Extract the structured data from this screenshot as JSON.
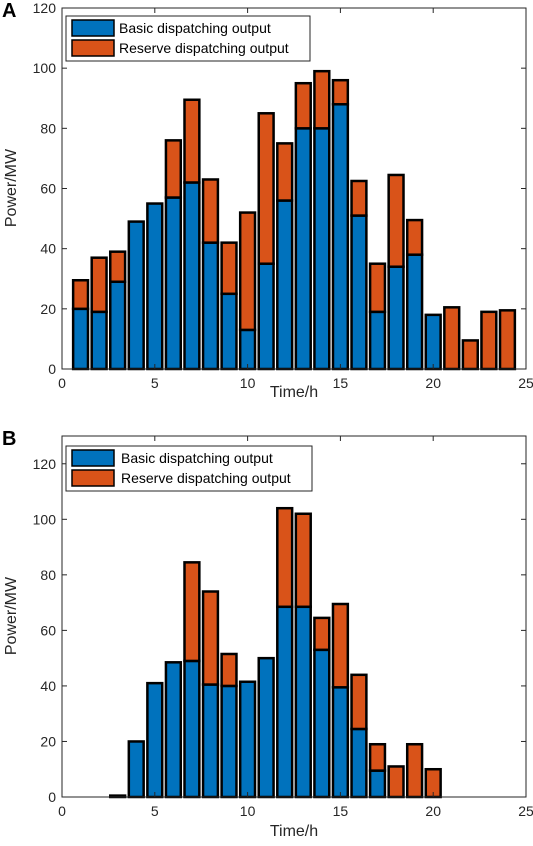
{
  "colors": {
    "basic": "#0072BD",
    "reserve": "#D95319",
    "edge": "#000000"
  },
  "chart_data": [
    {
      "panel": "A",
      "type": "bar",
      "stacked": true,
      "xlabel": "Time/h",
      "ylabel": "Power/MW",
      "xlim": [
        0,
        25
      ],
      "ylim": [
        0,
        120
      ],
      "xticks": [
        0,
        5,
        10,
        15,
        20,
        25
      ],
      "yticks": [
        0,
        20,
        40,
        60,
        80,
        100,
        120
      ],
      "legend_position": "top-left",
      "categories": [
        1,
        2,
        3,
        4,
        5,
        6,
        7,
        8,
        9,
        10,
        11,
        12,
        13,
        14,
        15,
        16,
        17,
        18,
        19,
        20,
        21,
        22,
        23,
        24
      ],
      "series": [
        {
          "name": "Basic dispatching output",
          "values": [
            20,
            19,
            29,
            49,
            55,
            57,
            62,
            42,
            25,
            13,
            35,
            56,
            80,
            80,
            88,
            51,
            19,
            34,
            38,
            18,
            0,
            0,
            0,
            0
          ]
        },
        {
          "name": "Reserve dispatching output",
          "values": [
            9.5,
            18,
            10,
            0,
            0,
            19,
            27.5,
            21,
            17,
            39,
            50,
            19,
            15,
            19,
            8,
            11.5,
            16,
            30.5,
            11.5,
            0,
            20.5,
            9.5,
            19,
            19.5
          ]
        }
      ]
    },
    {
      "panel": "B",
      "type": "bar",
      "stacked": true,
      "xlabel": "Time/h",
      "ylabel": "Power/MW",
      "xlim": [
        0,
        25
      ],
      "ylim": [
        0,
        130
      ],
      "xticks": [
        0,
        5,
        10,
        15,
        20,
        25
      ],
      "yticks": [
        0,
        20,
        40,
        60,
        80,
        100,
        120
      ],
      "legend_position": "top-left",
      "categories": [
        1,
        2,
        3,
        4,
        5,
        6,
        7,
        8,
        9,
        10,
        11,
        12,
        13,
        14,
        15,
        16,
        17,
        18,
        19,
        20,
        21,
        22,
        23,
        24
      ],
      "series": [
        {
          "name": "Basic dispatching output",
          "values": [
            0,
            0,
            0.5,
            20,
            41,
            48.5,
            49,
            40.5,
            40,
            41.5,
            50,
            68.5,
            68.5,
            53,
            39.5,
            24.5,
            9.5,
            0,
            0,
            0,
            0,
            0,
            0,
            0
          ]
        },
        {
          "name": "Reserve dispatching output",
          "values": [
            0,
            0,
            0,
            0,
            0,
            0,
            35.5,
            33.5,
            11.5,
            0,
            0,
            35.5,
            33.5,
            11.5,
            30,
            19.5,
            9.5,
            11,
            19,
            10,
            0,
            0,
            0,
            0
          ]
        }
      ]
    }
  ]
}
